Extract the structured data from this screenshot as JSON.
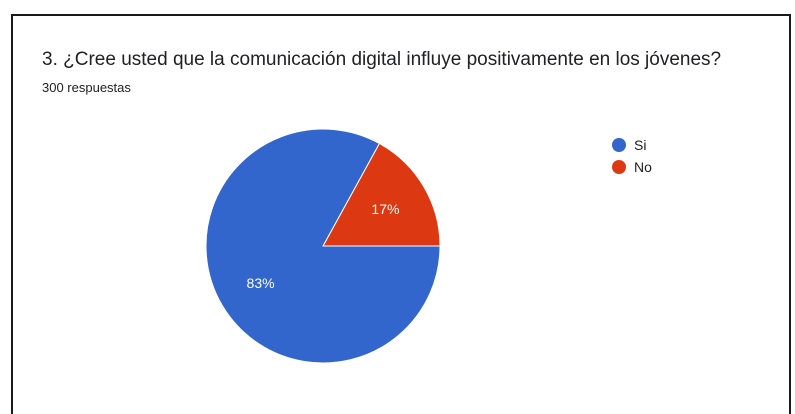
{
  "question": {
    "title": "3. ¿Cree usted que la comunicación digital influye positivamente en los jóvenes?",
    "responses": "300 respuestas"
  },
  "chart_data": {
    "type": "pie",
    "slices": [
      {
        "label": "Si",
        "value": 83,
        "label_text": "83%",
        "color": "#3366cc"
      },
      {
        "label": "No",
        "value": 17,
        "label_text": "17%",
        "color": "#dc3912"
      }
    ],
    "legend_position": "right"
  }
}
